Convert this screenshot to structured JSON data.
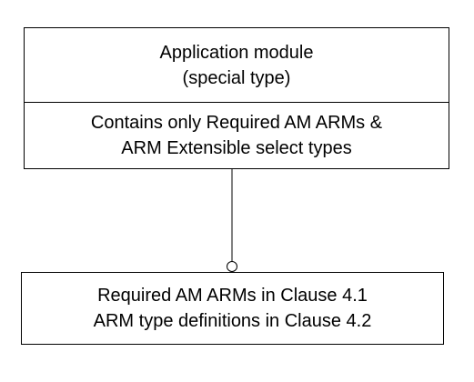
{
  "module_box": {
    "title_lines": [
      "Application module",
      "(special type)"
    ],
    "content_lines": [
      "Contains only Required AM ARMs &",
      "ARM Extensible select types"
    ]
  },
  "reference_box": {
    "lines": [
      "Required AM ARMs in Clause 4.1",
      "ARM type definitions in Clause 4.2"
    ]
  },
  "colors": {
    "stroke": "#000000",
    "fill": "#ffffff"
  }
}
